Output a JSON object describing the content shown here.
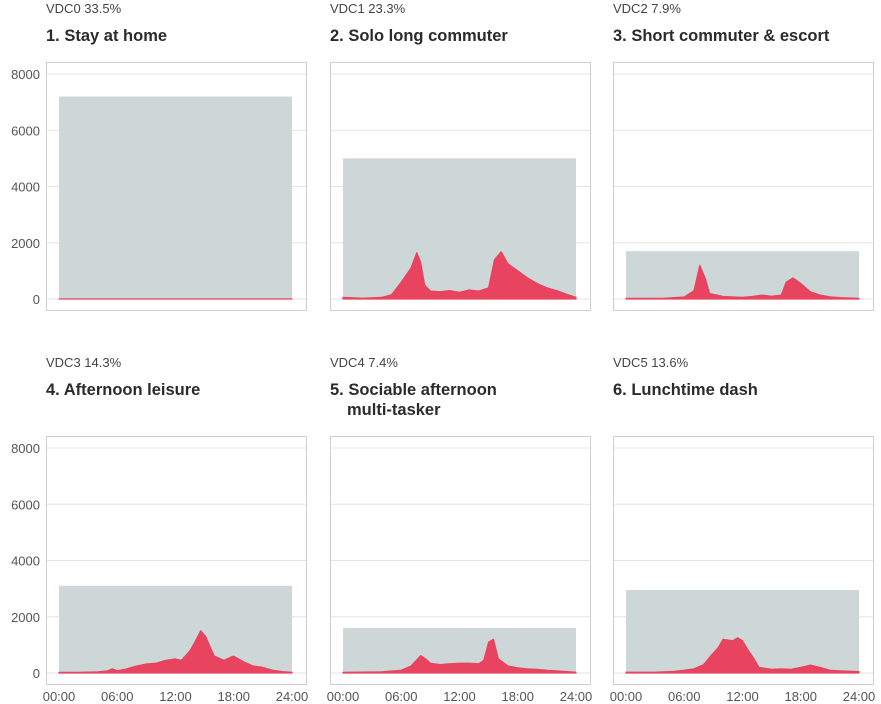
{
  "chart_data": {
    "type": "area",
    "x_ticks": [
      "00:00",
      "06:00",
      "12:00",
      "18:00",
      "24:00"
    ],
    "y_ticks": [
      "0",
      "2000",
      "4000",
      "6000",
      "8000"
    ],
    "ylim": [
      0,
      8400
    ],
    "xlim": [
      0,
      24
    ],
    "grid": true,
    "colors": {
      "total": "#cdd7d7",
      "active": "#e8435f",
      "grid": "#e3e3e3",
      "frame": "#cfcfcf"
    },
    "panels": [
      {
        "subtitle": "VDC0 33.5%",
        "title_lines": [
          "1. Stay at home"
        ],
        "total": 7200,
        "active": [
          [
            0,
            0
          ],
          [
            24,
            0
          ]
        ]
      },
      {
        "subtitle": "VDC1 23.3%",
        "title_lines": [
          "2. Solo long commuter"
        ],
        "total": 5000,
        "active": [
          [
            0,
            60
          ],
          [
            2,
            30
          ],
          [
            4,
            60
          ],
          [
            5,
            150
          ],
          [
            6,
            600
          ],
          [
            7,
            1100
          ],
          [
            7.6,
            1650
          ],
          [
            8,
            1300
          ],
          [
            8.4,
            500
          ],
          [
            9,
            280
          ],
          [
            10,
            260
          ],
          [
            11,
            300
          ],
          [
            12,
            240
          ],
          [
            13,
            320
          ],
          [
            14,
            280
          ],
          [
            15,
            400
          ],
          [
            15.6,
            1400
          ],
          [
            16.3,
            1680
          ],
          [
            17,
            1250
          ],
          [
            18,
            1000
          ],
          [
            19,
            750
          ],
          [
            20,
            550
          ],
          [
            21,
            400
          ],
          [
            22,
            300
          ],
          [
            23,
            170
          ],
          [
            24,
            60
          ]
        ]
      },
      {
        "subtitle": "VDC2 7.9%",
        "title_lines": [
          "3. Short commuter & escort"
        ],
        "total": 1700,
        "active": [
          [
            0,
            20
          ],
          [
            4,
            30
          ],
          [
            6,
            70
          ],
          [
            7,
            300
          ],
          [
            7.6,
            1200
          ],
          [
            8.2,
            700
          ],
          [
            8.6,
            200
          ],
          [
            10,
            90
          ],
          [
            12,
            60
          ],
          [
            13,
            90
          ],
          [
            14,
            140
          ],
          [
            15,
            100
          ],
          [
            16,
            140
          ],
          [
            16.5,
            600
          ],
          [
            17.2,
            750
          ],
          [
            18,
            550
          ],
          [
            19,
            250
          ],
          [
            20,
            140
          ],
          [
            21,
            80
          ],
          [
            22,
            50
          ],
          [
            24,
            20
          ]
        ]
      },
      {
        "subtitle": "VDC3 14.3%",
        "title_lines": [
          "4. Afternoon leisure"
        ],
        "total": 3100,
        "active": [
          [
            0,
            20
          ],
          [
            2,
            20
          ],
          [
            4,
            40
          ],
          [
            5,
            80
          ],
          [
            5.5,
            150
          ],
          [
            6,
            80
          ],
          [
            7,
            150
          ],
          [
            8,
            250
          ],
          [
            9,
            320
          ],
          [
            10,
            350
          ],
          [
            11,
            450
          ],
          [
            12,
            500
          ],
          [
            12.6,
            450
          ],
          [
            13,
            600
          ],
          [
            13.5,
            800
          ],
          [
            14,
            1100
          ],
          [
            14.6,
            1500
          ],
          [
            15.1,
            1300
          ],
          [
            15.6,
            900
          ],
          [
            16,
            600
          ],
          [
            17,
            450
          ],
          [
            17.6,
            550
          ],
          [
            18,
            600
          ],
          [
            19,
            400
          ],
          [
            20,
            250
          ],
          [
            21,
            200
          ],
          [
            22,
            100
          ],
          [
            23,
            50
          ],
          [
            24,
            20
          ]
        ]
      },
      {
        "subtitle": "VDC4 7.4%",
        "title_lines": [
          "5. Sociable afternoon",
          "multi-tasker"
        ],
        "total": 1600,
        "active": [
          [
            0,
            20
          ],
          [
            4,
            40
          ],
          [
            6,
            100
          ],
          [
            7,
            250
          ],
          [
            8,
            620
          ],
          [
            8.6,
            480
          ],
          [
            9,
            350
          ],
          [
            10,
            300
          ],
          [
            11,
            330
          ],
          [
            12,
            350
          ],
          [
            13,
            350
          ],
          [
            14,
            330
          ],
          [
            14.5,
            450
          ],
          [
            15,
            1100
          ],
          [
            15.5,
            1200
          ],
          [
            16,
            500
          ],
          [
            17,
            250
          ],
          [
            18,
            180
          ],
          [
            19,
            150
          ],
          [
            20,
            130
          ],
          [
            21,
            100
          ],
          [
            22,
            80
          ],
          [
            24,
            30
          ]
        ]
      },
      {
        "subtitle": "VDC5 13.6%",
        "title_lines": [
          "6. Lunchtime dash"
        ],
        "total": 2950,
        "active": [
          [
            0,
            30
          ],
          [
            3,
            30
          ],
          [
            5,
            60
          ],
          [
            6,
            100
          ],
          [
            7,
            150
          ],
          [
            8,
            300
          ],
          [
            8.7,
            600
          ],
          [
            9.5,
            900
          ],
          [
            10,
            1200
          ],
          [
            11,
            1150
          ],
          [
            11.5,
            1250
          ],
          [
            12,
            1150
          ],
          [
            12.6,
            800
          ],
          [
            13.2,
            500
          ],
          [
            13.7,
            200
          ],
          [
            15,
            130
          ],
          [
            16,
            150
          ],
          [
            17,
            130
          ],
          [
            18,
            200
          ],
          [
            19,
            280
          ],
          [
            20,
            200
          ],
          [
            21,
            100
          ],
          [
            22,
            80
          ],
          [
            24,
            50
          ]
        ]
      }
    ]
  }
}
